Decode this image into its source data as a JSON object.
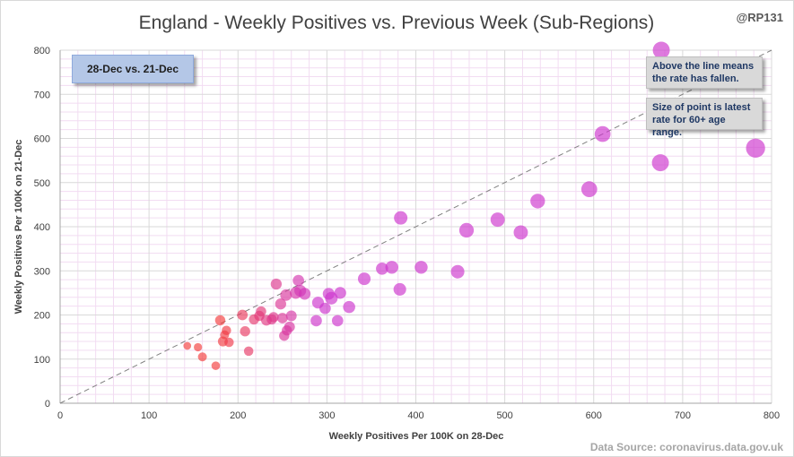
{
  "chart_data": {
    "type": "scatter",
    "title": "England - Weekly Positives vs. Previous Week (Sub-Regions)",
    "xlabel": "Weekly Positives Per 100K on 28-Dec",
    "ylabel": "Weekly Positives Per 100K on 21-Dec",
    "xlim": [
      0,
      800
    ],
    "ylim": [
      0,
      800
    ],
    "xticks": [
      0,
      100,
      200,
      300,
      400,
      500,
      600,
      700,
      800
    ],
    "yticks": [
      0,
      100,
      200,
      300,
      400,
      500,
      600,
      700,
      800
    ],
    "grid": true,
    "reference_line": "y = x (dashed)",
    "size_encoding": "Latest rate for 60+ age range",
    "colors": {
      "low": "#f23c3c",
      "high": "#cc33cc",
      "reference_line": "#808080",
      "grid_minor": "#f2dcf2",
      "grid_major": "#d9d9d9"
    },
    "points": [
      {
        "x": 143,
        "y": 130,
        "s": 0.15
      },
      {
        "x": 155,
        "y": 127,
        "s": 0.18
      },
      {
        "x": 160,
        "y": 105,
        "s": 0.22
      },
      {
        "x": 175,
        "y": 85,
        "s": 0.2
      },
      {
        "x": 180,
        "y": 188,
        "s": 0.3
      },
      {
        "x": 183,
        "y": 140,
        "s": 0.28
      },
      {
        "x": 185,
        "y": 155,
        "s": 0.22
      },
      {
        "x": 187,
        "y": 165,
        "s": 0.25
      },
      {
        "x": 190,
        "y": 138,
        "s": 0.25
      },
      {
        "x": 205,
        "y": 200,
        "s": 0.32
      },
      {
        "x": 208,
        "y": 163,
        "s": 0.3
      },
      {
        "x": 212,
        "y": 118,
        "s": 0.25
      },
      {
        "x": 218,
        "y": 190,
        "s": 0.3
      },
      {
        "x": 224,
        "y": 198,
        "s": 0.3
      },
      {
        "x": 226,
        "y": 208,
        "s": 0.3
      },
      {
        "x": 232,
        "y": 188,
        "s": 0.33
      },
      {
        "x": 238,
        "y": 190,
        "s": 0.3
      },
      {
        "x": 240,
        "y": 195,
        "s": 0.3
      },
      {
        "x": 243,
        "y": 270,
        "s": 0.35
      },
      {
        "x": 248,
        "y": 225,
        "s": 0.35
      },
      {
        "x": 250,
        "y": 193,
        "s": 0.32
      },
      {
        "x": 252,
        "y": 153,
        "s": 0.3
      },
      {
        "x": 254,
        "y": 245,
        "s": 0.38
      },
      {
        "x": 255,
        "y": 165,
        "s": 0.3
      },
      {
        "x": 258,
        "y": 173,
        "s": 0.33
      },
      {
        "x": 260,
        "y": 198,
        "s": 0.33
      },
      {
        "x": 265,
        "y": 250,
        "s": 0.4
      },
      {
        "x": 268,
        "y": 278,
        "s": 0.37
      },
      {
        "x": 270,
        "y": 255,
        "s": 0.4
      },
      {
        "x": 275,
        "y": 248,
        "s": 0.4
      },
      {
        "x": 288,
        "y": 187,
        "s": 0.37
      },
      {
        "x": 290,
        "y": 228,
        "s": 0.4
      },
      {
        "x": 298,
        "y": 215,
        "s": 0.37
      },
      {
        "x": 302,
        "y": 248,
        "s": 0.4
      },
      {
        "x": 305,
        "y": 238,
        "s": 0.45
      },
      {
        "x": 312,
        "y": 187,
        "s": 0.37
      },
      {
        "x": 315,
        "y": 250,
        "s": 0.4
      },
      {
        "x": 325,
        "y": 218,
        "s": 0.42
      },
      {
        "x": 342,
        "y": 282,
        "s": 0.45
      },
      {
        "x": 362,
        "y": 305,
        "s": 0.42
      },
      {
        "x": 373,
        "y": 308,
        "s": 0.47
      },
      {
        "x": 382,
        "y": 258,
        "s": 0.45
      },
      {
        "x": 383,
        "y": 420,
        "s": 0.5
      },
      {
        "x": 406,
        "y": 308,
        "s": 0.47
      },
      {
        "x": 447,
        "y": 298,
        "s": 0.5
      },
      {
        "x": 457,
        "y": 392,
        "s": 0.57
      },
      {
        "x": 492,
        "y": 416,
        "s": 0.55
      },
      {
        "x": 518,
        "y": 387,
        "s": 0.55
      },
      {
        "x": 537,
        "y": 458,
        "s": 0.57
      },
      {
        "x": 595,
        "y": 485,
        "s": 0.65
      },
      {
        "x": 610,
        "y": 610,
        "s": 0.65
      },
      {
        "x": 675,
        "y": 545,
        "s": 0.72
      },
      {
        "x": 676,
        "y": 800,
        "s": 0.72
      },
      {
        "x": 782,
        "y": 578,
        "s": 0.85
      }
    ]
  },
  "chart_label": "28-Dec vs. 21-Dec",
  "handle": "@RP131",
  "annotations": [
    "Above the line means",
    "the rate has fallen.",
    "Size of point is latest",
    "rate for 60+ age range."
  ],
  "source": "Data Source: coronavirus.data.gov.uk"
}
